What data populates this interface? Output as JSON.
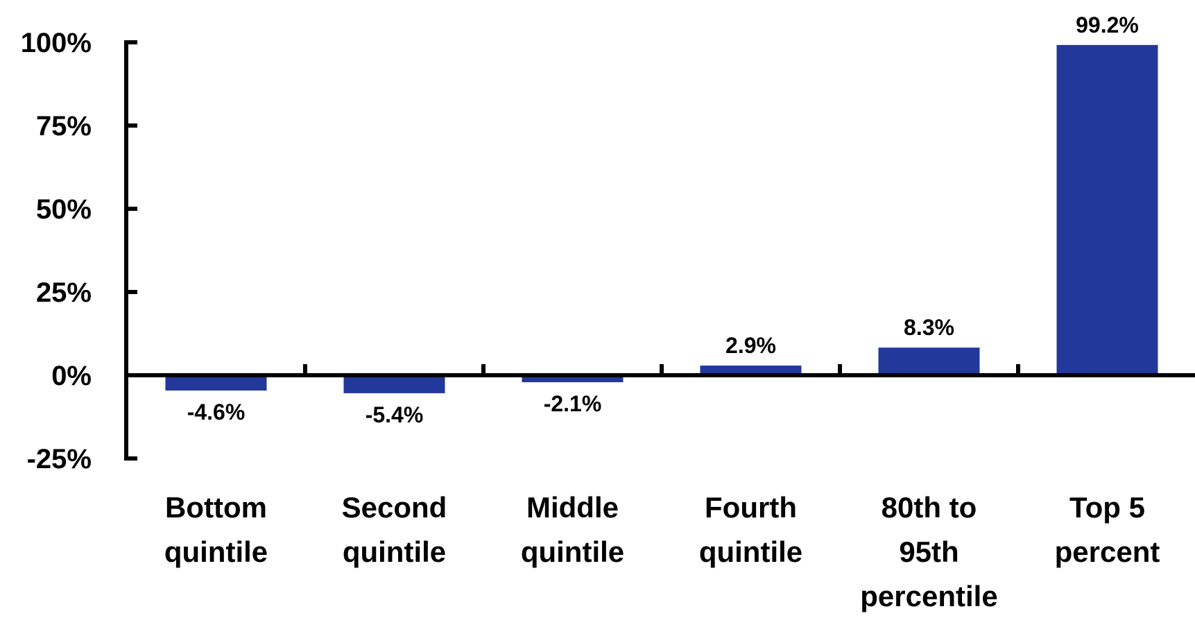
{
  "chart_data": {
    "type": "bar",
    "title": "",
    "xlabel": "",
    "ylabel": "",
    "categories": [
      [
        "Bottom",
        "quintile"
      ],
      [
        "Second",
        "quintile"
      ],
      [
        "Middle",
        "quintile"
      ],
      [
        "Fourth",
        "quintile"
      ],
      [
        "80th to",
        "95th",
        "percentile"
      ],
      [
        "Top 5",
        "percent"
      ]
    ],
    "values": [
      -4.6,
      -5.4,
      -2.1,
      2.9,
      8.3,
      99.2
    ],
    "value_labels": [
      "-4.6%",
      "-5.4%",
      "-2.1%",
      "2.9%",
      "8.3%",
      "99.2%"
    ],
    "ylim": [
      -25,
      100
    ],
    "yticks": [
      100,
      75,
      50,
      25,
      0,
      -25
    ],
    "ytick_labels": [
      "100%",
      "75%",
      "50%",
      "25%",
      "0%",
      "-25%"
    ],
    "grid": false,
    "legend": "none",
    "bar_color": "#22389a",
    "axis_color": "#000000"
  }
}
